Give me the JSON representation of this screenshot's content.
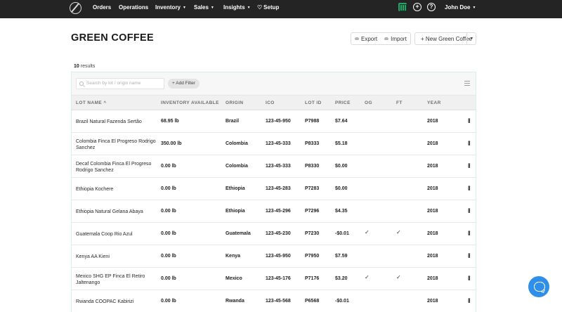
{
  "nav": {
    "items": [
      {
        "label": "Orders",
        "dropdown": false
      },
      {
        "label": "Operations",
        "dropdown": false
      },
      {
        "label": "Inventory",
        "dropdown": true
      },
      {
        "label": "Sales",
        "dropdown": true
      },
      {
        "label": "Insights",
        "dropdown": true
      },
      {
        "label": "Setup",
        "dropdown": false
      }
    ],
    "user_name": "John Doe",
    "icons": [
      "logo-icon",
      "spreadsheet-icon",
      "plus-circle-icon",
      "help-circle-icon",
      "gift-icon"
    ]
  },
  "header": {
    "title": "GREEN COFFEE",
    "export_label": "Export",
    "import_label": "Import",
    "new_label": "+ New Green Coffee"
  },
  "results": {
    "count": "10",
    "label": "results"
  },
  "filters": {
    "search_placeholder": "Search by lot / origin name",
    "add_filter_label": "+ Add Filter"
  },
  "table": {
    "columns": [
      "LOT NAME",
      "INVENTORY AVAILABLE",
      "ORIGIN",
      "ICO",
      "LOT ID",
      "PRICE",
      "OG",
      "FT",
      "YEAR"
    ],
    "sort_indicator": "^",
    "rows": [
      {
        "name": "Brazil Natural Fazenda Sertão",
        "inventory": "68.95 lb",
        "origin": "Brazil",
        "ico": "123-45-950",
        "lot_id": "P7988",
        "price": "$7.64",
        "og": false,
        "ft": false,
        "year": "2018"
      },
      {
        "name": "Colombia Finca El Progreso Rodrigo Sanchez",
        "inventory": "350.00 lb",
        "origin": "Colombia",
        "ico": "123-45-333",
        "lot_id": "P8333",
        "price": "$5.18",
        "og": false,
        "ft": false,
        "year": "2018"
      },
      {
        "name": "Decaf Colombia Finca El Progreso Rodrigo Sanchez",
        "inventory": "0.00 lb",
        "origin": "Colombia",
        "ico": "123-45-333",
        "lot_id": "P8330",
        "price": "$0.00",
        "og": false,
        "ft": false,
        "year": "2018"
      },
      {
        "name": "Ethiopia Kochere",
        "inventory": "0.00 lb",
        "origin": "Ethiopia",
        "ico": "123-45-283",
        "lot_id": "P7283",
        "price": "$0.00",
        "og": false,
        "ft": false,
        "year": "2018"
      },
      {
        "name": "Ethiopia Natural Gelana Abaya",
        "inventory": "0.00 lb",
        "origin": "Ethiopia",
        "ico": "123-45-296",
        "lot_id": "P7296",
        "price": "$4.35",
        "og": false,
        "ft": false,
        "year": "2018"
      },
      {
        "name": "Guatemala Coop Rio Azul",
        "inventory": "0.00 lb",
        "origin": "Guatemala",
        "ico": "123-45-230",
        "lot_id": "P7230",
        "price": "-$0.01",
        "og": true,
        "ft": true,
        "year": "2018"
      },
      {
        "name": "Kenya AA Kieni",
        "inventory": "0.00 lb",
        "origin": "Kenya",
        "ico": "123-45-950",
        "lot_id": "P7950",
        "price": "$7.59",
        "og": false,
        "ft": false,
        "year": "2018"
      },
      {
        "name": "Mexico SHG EP Finca El Retiro Jaltenango",
        "inventory": "0.00 lb",
        "origin": "Mexico",
        "ico": "123-45-176",
        "lot_id": "P7176",
        "price": "$3.20",
        "og": true,
        "ft": true,
        "year": "2018"
      },
      {
        "name": "Rwanda COOPAC Kabirizi",
        "inventory": "0.00 lb",
        "origin": "Rwanda",
        "ico": "123-45-568",
        "lot_id": "P6568",
        "price": "-$0.01",
        "og": false,
        "ft": false,
        "year": "2018"
      }
    ]
  },
  "colors": {
    "topbar": "#242424",
    "help_button": "#2e8ee8",
    "table_border": "#d6efef"
  }
}
